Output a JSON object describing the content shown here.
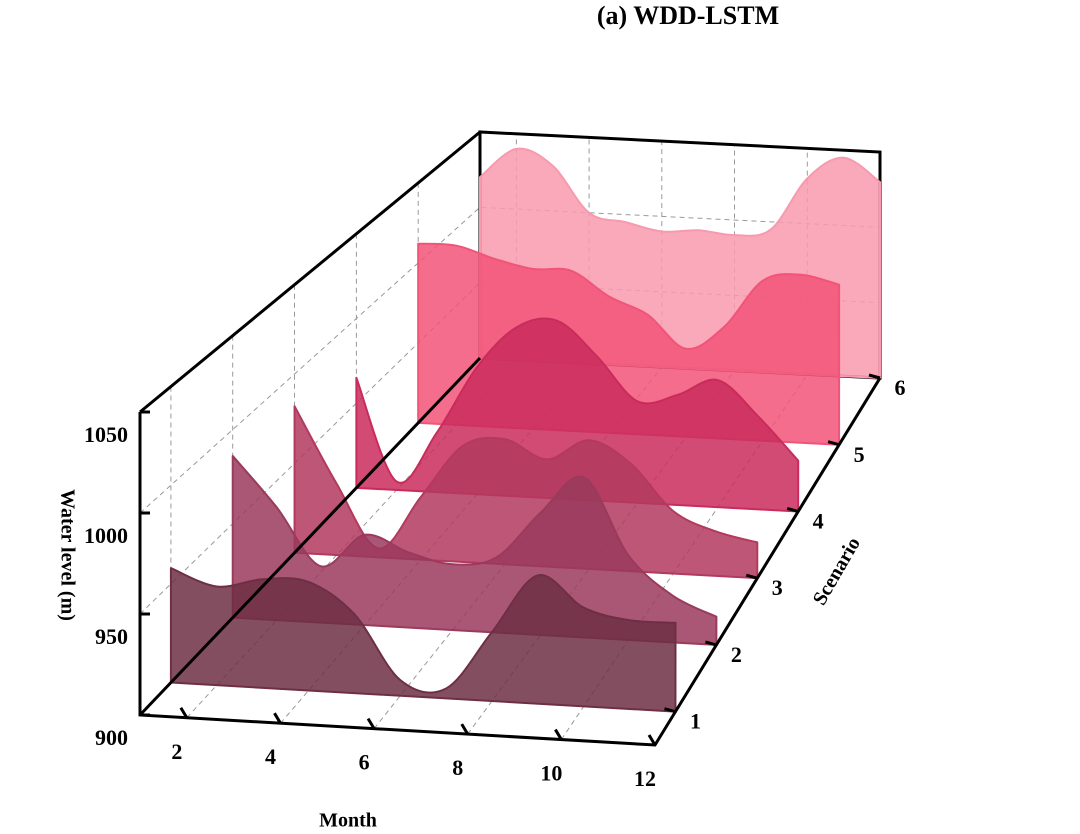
{
  "chart_data": {
    "type": "ridgeline",
    "title": "(a) WDD-LSTM",
    "xlabel": "Month",
    "ylabel": "Water level (m)",
    "zlabel": "Scenario",
    "x": [
      1,
      2,
      3,
      4,
      5,
      6,
      7,
      8,
      9,
      10,
      11,
      12
    ],
    "xlim": [
      1,
      12
    ],
    "xticks": [
      2,
      4,
      6,
      8,
      10,
      12
    ],
    "ylim": [
      900,
      1050
    ],
    "yticks": [
      900,
      950,
      1000,
      1050
    ],
    "zlim": [
      0.5,
      6
    ],
    "zticks": [
      1,
      2,
      3,
      4,
      5,
      6
    ],
    "grid": true,
    "series": [
      {
        "name": "1",
        "z": 1,
        "color": "#6e2f45",
        "values": [
          958,
          950,
          955,
          955,
          940,
          908,
          905,
          935,
          965,
          950,
          945,
          945
        ]
      },
      {
        "name": "2",
        "z": 2,
        "color": "#9a3a5c",
        "values": [
          986,
          960,
          930,
          948,
          940,
          935,
          940,
          965,
          985,
          945,
          925,
          915
        ]
      },
      {
        "name": "3",
        "z": 3,
        "color": "#b3395f",
        "values": [
          982,
          940,
          905,
          935,
          965,
          970,
          960,
          972,
          960,
          935,
          925,
          920
        ]
      },
      {
        "name": "4",
        "z": 4,
        "color": "#c92c5c",
        "values": [
          965,
          905,
          935,
          975,
          1000,
          1005,
          985,
          960,
          965,
          975,
          955,
          930
        ]
      },
      {
        "name": "5",
        "z": 5,
        "color": "#f25478",
        "values": [
          1012,
          1012,
          1005,
          1000,
          1000,
          985,
          975,
          955,
          970,
          1000,
          1005,
          1000
        ]
      },
      {
        "name": "6",
        "z": 6,
        "color": "#f89aae",
        "values": [
          1020,
          1040,
          1030,
          1000,
          995,
          990,
          992,
          990,
          995,
          1030,
          1045,
          1030
        ]
      }
    ]
  }
}
